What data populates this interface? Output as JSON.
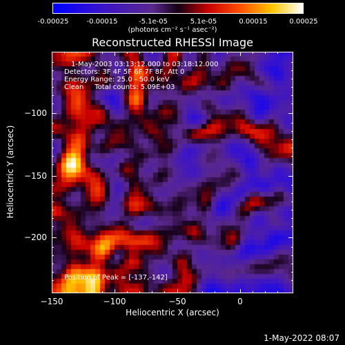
{
  "colorbar": {
    "ticks": [
      "-0.00025",
      "-0.00015",
      "-5.1e-05",
      "5.1e-05",
      "0.00015",
      "0.00025"
    ],
    "units": "(photons cm⁻² s⁻¹ asec⁻²)"
  },
  "title": "Reconstructed RHESSI Image",
  "info": {
    "line1": "1-May-2003 03:13:12.000 to 03:18:12.000",
    "line2": "Detectors: 3F 4F 5F 6F 7F 8F, Att 0",
    "line3": "Energy Range: 25.0 - 50.0 keV",
    "line4": "Clean     Total counts: 5.09E+03",
    "peak": "Position of Peak = [-137,-142]"
  },
  "axes": {
    "xlabel": "Heliocentric X (arcsec)",
    "ylabel": "Heliocentric Y (arcsec)",
    "xticks": [
      "−150",
      "−100",
      "−50",
      "0"
    ],
    "yticks": [
      "−100",
      "−150",
      "−200"
    ]
  },
  "timestamp": "1-May-2022 08:07",
  "colors": {
    "background": "#000000",
    "foreground": "#ffffff"
  }
}
